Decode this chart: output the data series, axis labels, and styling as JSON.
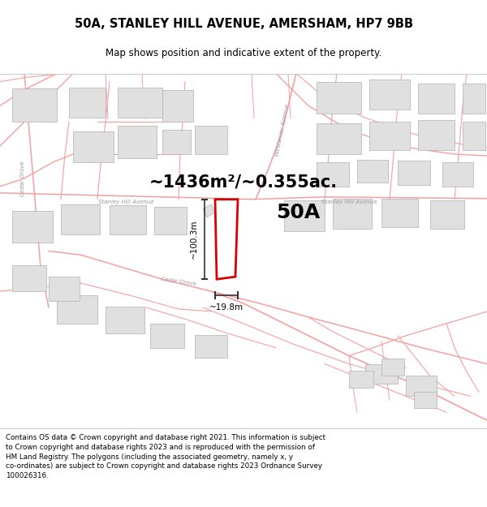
{
  "title_line1": "50A, STANLEY HILL AVENUE, AMERSHAM, HP7 9BB",
  "title_line2": "Map shows position and indicative extent of the property.",
  "area_text": "~1436m²/~0.355ac.",
  "label_50A": "50A",
  "dim_vertical": "~100.3m",
  "dim_horizontal": "~19.8m",
  "footer_text": "Contains OS data © Crown copyright and database right 2021. This information is subject to Crown copyright and database rights 2023 and is reproduced with the permission of HM Land Registry. The polygons (including the associated geometry, namely x, y co-ordinates) are subject to Crown copyright and database rights 2023 Ordnance Survey 100026316.",
  "bg_color": "#ffffff",
  "map_bg": "#ffffff",
  "road_color": "#f4a0a0",
  "road_lw": 1.0,
  "building_fill": "#e0e0e0",
  "building_edge": "#b0b0b0",
  "highlight_color": "#dd0000",
  "footer_bg": "#ffffff",
  "title_bg": "#ffffff",
  "road_label_color": "#999999",
  "dim_line_color": "#333333"
}
